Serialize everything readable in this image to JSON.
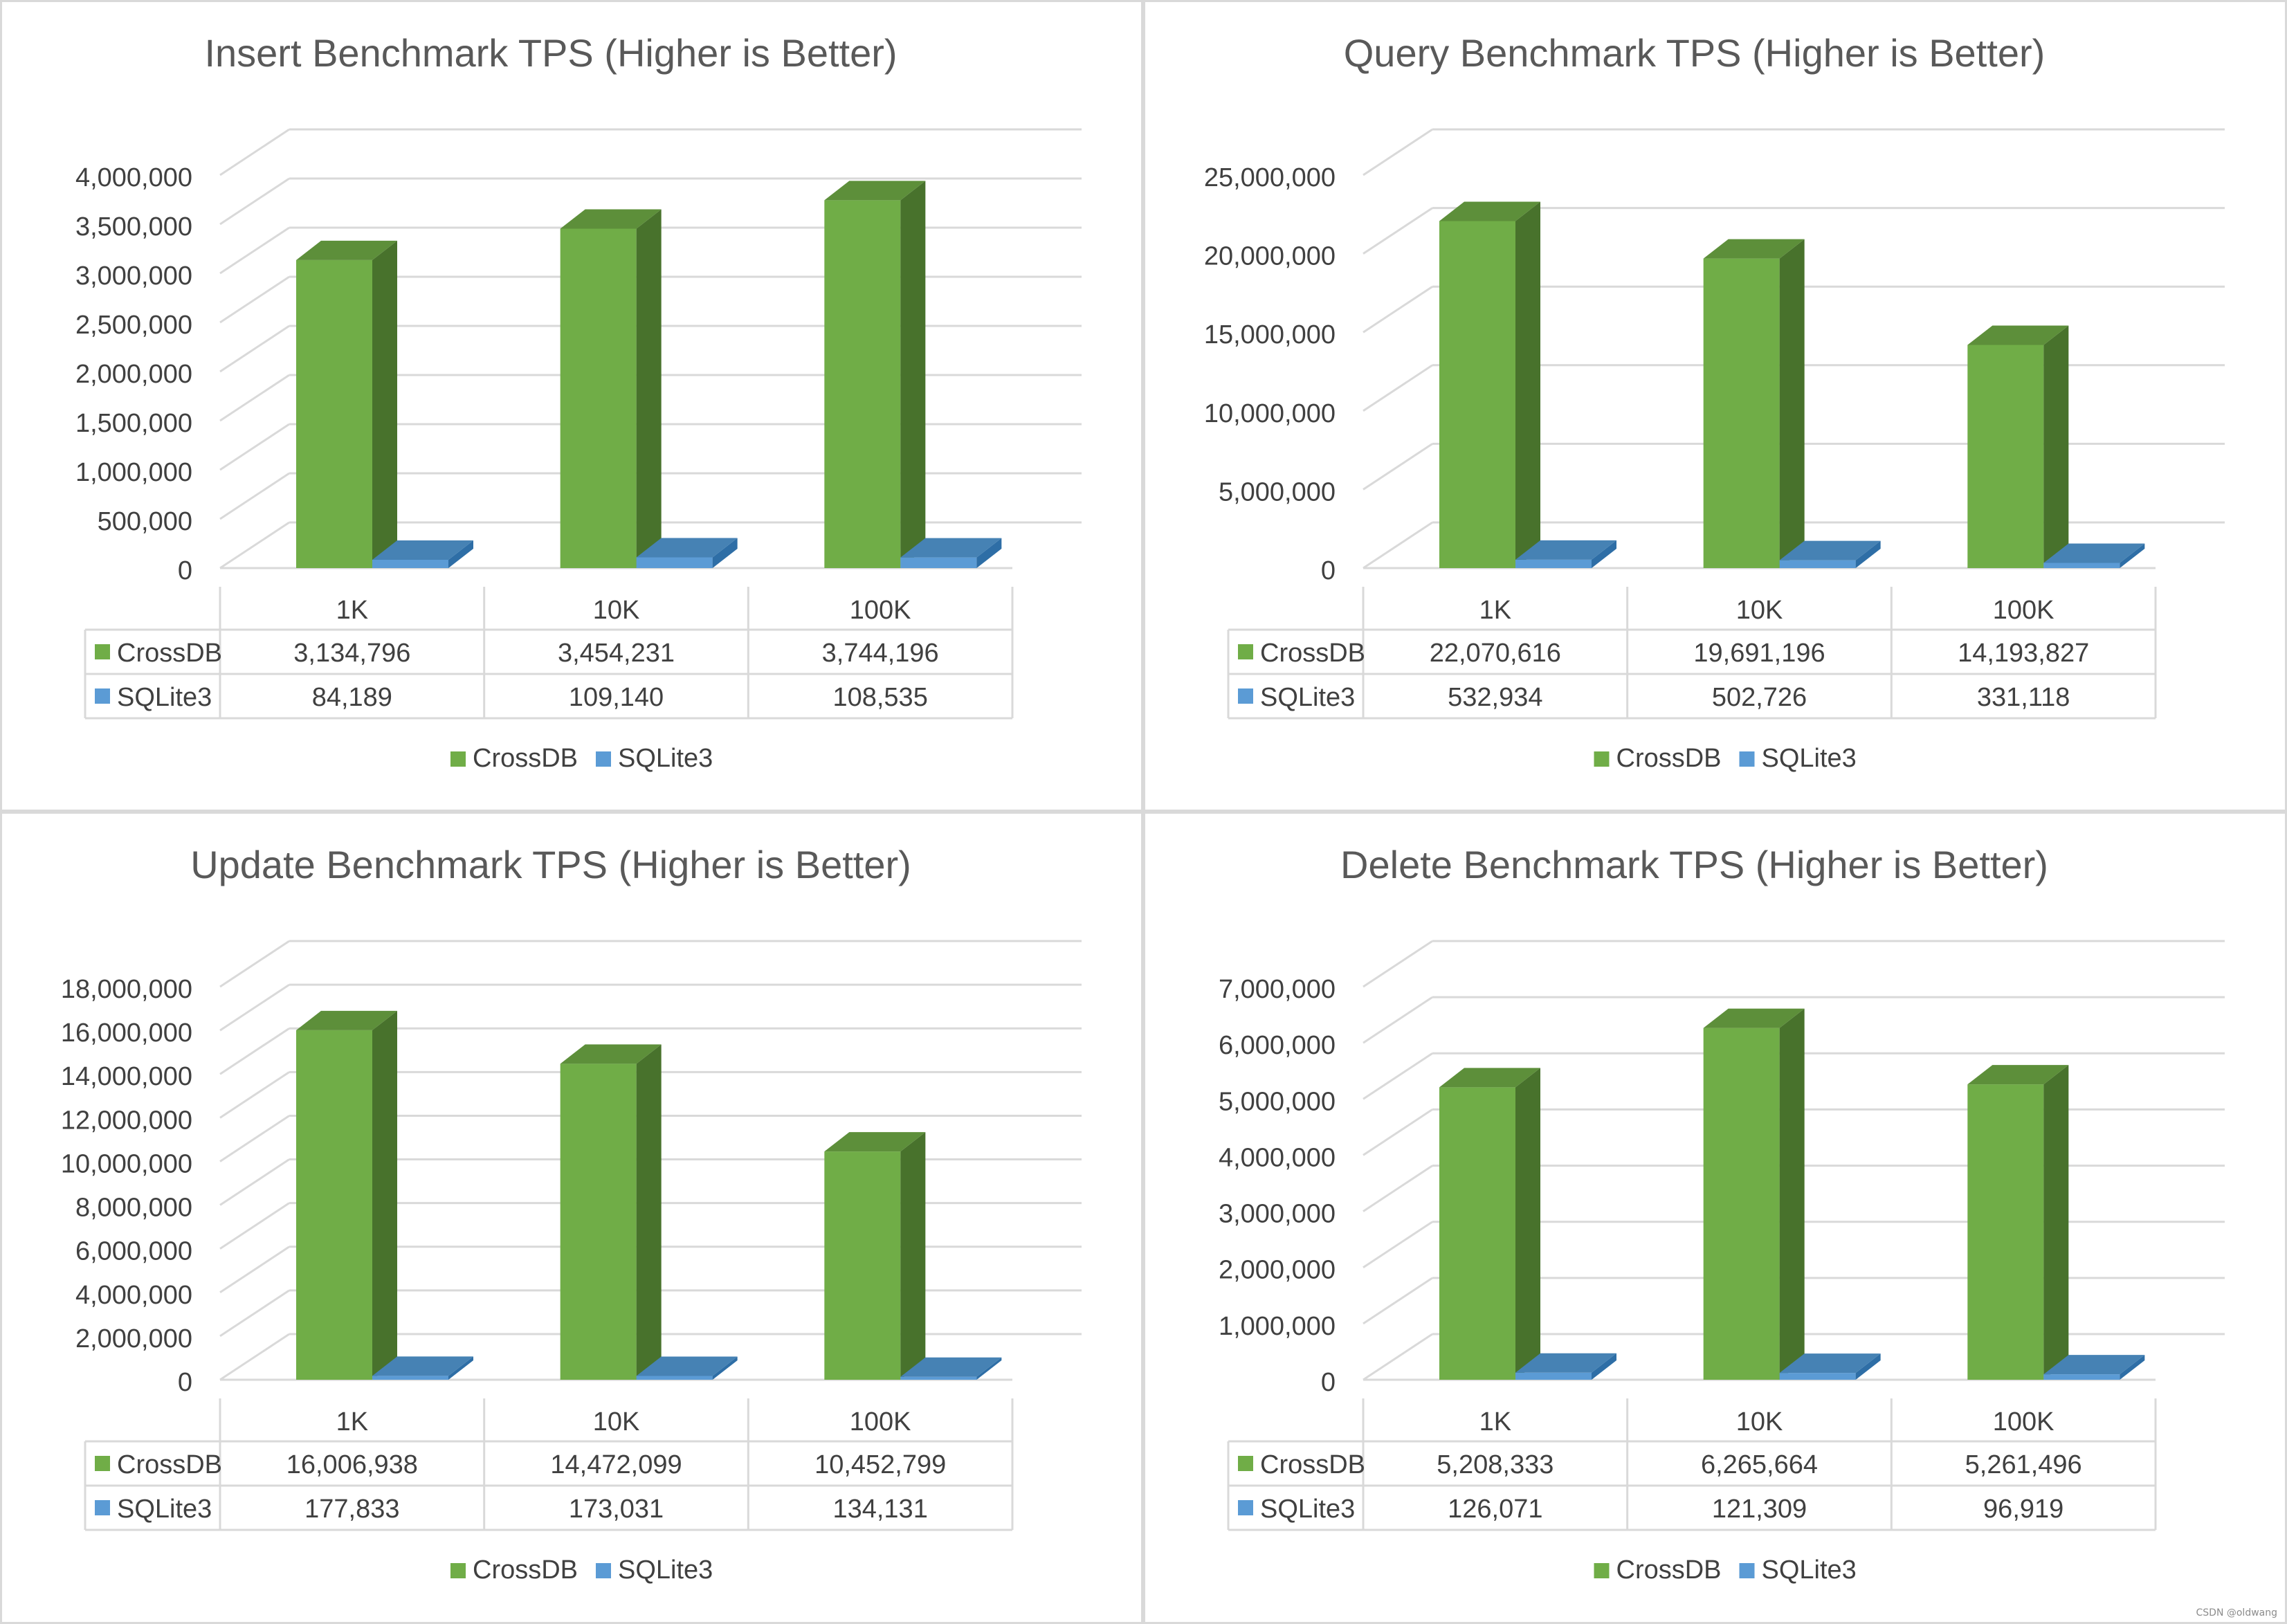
{
  "colors": {
    "crossdb_front": "#70ad47",
    "crossdb_side": "#48722c",
    "crossdb_top": "#5d8f3a",
    "sqlite_front": "#5b9bd5",
    "sqlite_side": "#2e6ea6",
    "sqlite_top": "#4682b4",
    "gridline": "#d9d9d9",
    "text": "#404040",
    "title": "#595959"
  },
  "chart_data": [
    {
      "type": "bar",
      "title": "Insert Benchmark TPS (Higher is Better)",
      "categories": [
        "1K",
        "10K",
        "100K"
      ],
      "series": [
        {
          "name": "CrossDB",
          "values": [
            3134796,
            3454231,
            3744196
          ]
        },
        {
          "name": "SQLite3",
          "values": [
            84189,
            109140,
            108535
          ]
        }
      ],
      "value_labels": [
        [
          "3,134,796",
          "3,454,231",
          "3,744,196"
        ],
        [
          "84,189",
          "109,140",
          "108,535"
        ]
      ],
      "yticks": [
        "0",
        "500,000",
        "1,000,000",
        "1,500,000",
        "2,000,000",
        "2,500,000",
        "3,000,000",
        "3,500,000",
        "4,000,000"
      ],
      "ylim": [
        0,
        4000000
      ],
      "ystep": 500000,
      "legend": "bottom",
      "data_table": true,
      "grid": true
    },
    {
      "type": "bar",
      "title": "Query Benchmark TPS (Higher is Better)",
      "categories": [
        "1K",
        "10K",
        "100K"
      ],
      "series": [
        {
          "name": "CrossDB",
          "values": [
            22070616,
            19691196,
            14193827
          ]
        },
        {
          "name": "SQLite3",
          "values": [
            532934,
            502726,
            331118
          ]
        }
      ],
      "value_labels": [
        [
          "22,070,616",
          "19,691,196",
          "14,193,827"
        ],
        [
          "532,934",
          "502,726",
          "331,118"
        ]
      ],
      "yticks": [
        "0",
        "5,000,000",
        "10,000,000",
        "15,000,000",
        "20,000,000",
        "25,000,000"
      ],
      "ylim": [
        0,
        25000000
      ],
      "ystep": 5000000,
      "legend": "bottom",
      "data_table": true,
      "grid": true
    },
    {
      "type": "bar",
      "title": "Update Benchmark TPS (Higher is Better)",
      "categories": [
        "1K",
        "10K",
        "100K"
      ],
      "series": [
        {
          "name": "CrossDB",
          "values": [
            16006938,
            14472099,
            10452799
          ]
        },
        {
          "name": "SQLite3",
          "values": [
            177833,
            173031,
            134131
          ]
        }
      ],
      "value_labels": [
        [
          "16,006,938",
          "14,472,099",
          "10,452,799"
        ],
        [
          "177,833",
          "173,031",
          "134,131"
        ]
      ],
      "yticks": [
        "0",
        "2,000,000",
        "4,000,000",
        "6,000,000",
        "8,000,000",
        "10,000,000",
        "12,000,000",
        "14,000,000",
        "16,000,000",
        "18,000,000"
      ],
      "ylim": [
        0,
        18000000
      ],
      "ystep": 2000000,
      "legend": "bottom",
      "data_table": true,
      "grid": true
    },
    {
      "type": "bar",
      "title": "Delete Benchmark TPS (Higher is Better)",
      "categories": [
        "1K",
        "10K",
        "100K"
      ],
      "series": [
        {
          "name": "CrossDB",
          "values": [
            5208333,
            6265664,
            5261496
          ]
        },
        {
          "name": "SQLite3",
          "values": [
            126071,
            121309,
            96919
          ]
        }
      ],
      "value_labels": [
        [
          "5,208,333",
          "6,265,664",
          "5,261,496"
        ],
        [
          "126,071",
          "121,309",
          "96,919"
        ]
      ],
      "yticks": [
        "0",
        "1,000,000",
        "2,000,000",
        "3,000,000",
        "4,000,000",
        "5,000,000",
        "6,000,000",
        "7,000,000"
      ],
      "ylim": [
        0,
        7000000
      ],
      "ystep": 1000000,
      "legend": "bottom",
      "data_table": true,
      "grid": true
    }
  ],
  "watermark": "CSDN @oldwang"
}
